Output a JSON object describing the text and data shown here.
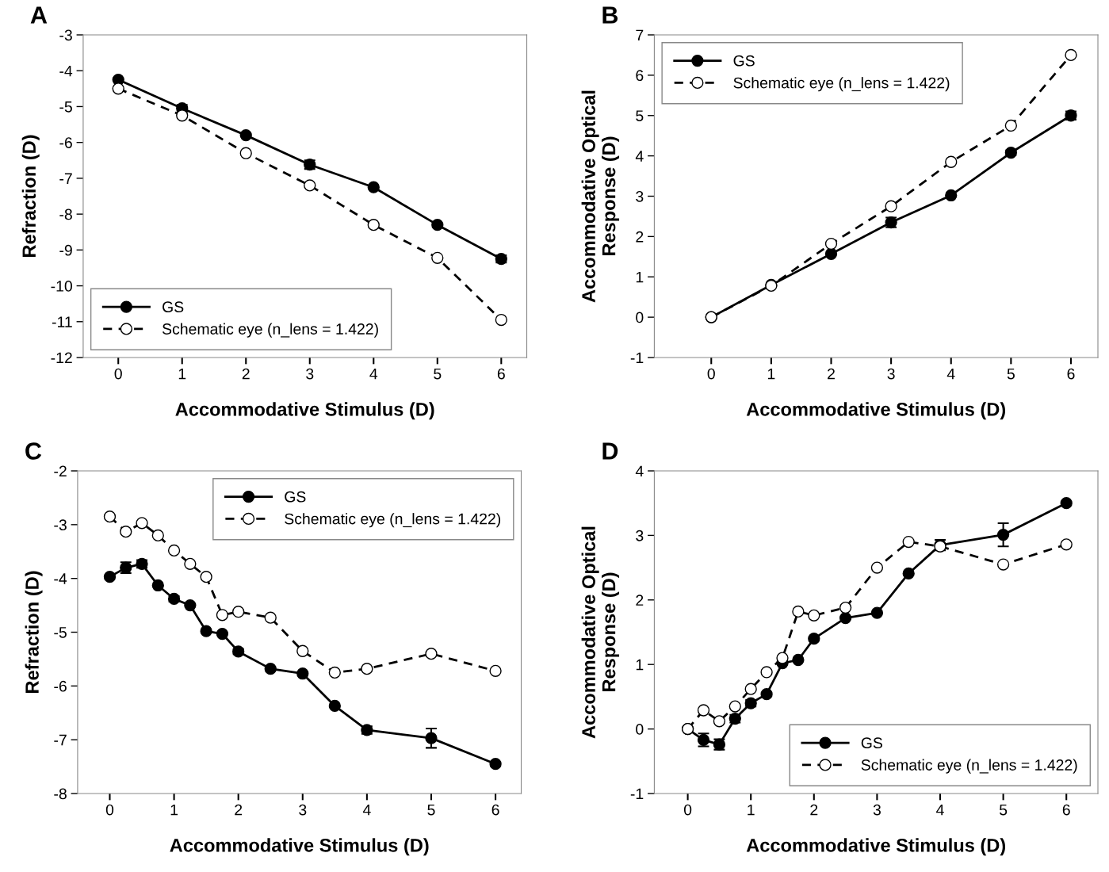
{
  "chart_data": [
    {
      "type": "line",
      "annotations": [
        "A"
      ],
      "xlabel": "Accommodative Stimulus (D)",
      "ylabel": "Refraction (D)",
      "x": [
        0,
        1,
        2,
        3,
        4,
        5,
        6
      ],
      "xlim": [
        -0.55,
        6.4
      ],
      "ylim": [
        -12,
        -3
      ],
      "xticks": [
        0,
        1,
        2,
        3,
        4,
        5,
        6
      ],
      "yticks": [
        -12,
        -11,
        -10,
        -9,
        -8,
        -7,
        -6,
        -5,
        -4,
        -3
      ],
      "legend": "bottom left",
      "grid": false,
      "marker": "circle",
      "series": [
        {
          "name": "GS",
          "color": "#000000",
          "line_style": "solid",
          "values": [
            -4.25,
            -5.05,
            -5.8,
            -6.62,
            -7.25,
            -8.3,
            -9.25
          ],
          "errors": [
            null,
            0.1,
            null,
            0.12,
            null,
            null,
            0.1
          ]
        },
        {
          "name": "Schematic eye (n_lens = 1.422)",
          "color": "#ffffff",
          "line_style": "dashed",
          "values": [
            -4.5,
            -5.25,
            -6.3,
            -7.2,
            -8.3,
            -9.22,
            -10.95
          ]
        }
      ]
    },
    {
      "type": "line",
      "annotations": [
        "B"
      ],
      "xlabel": "Accommodative Stimulus (D)",
      "ylabel": "Accommodative Optical\nResponse (D)",
      "x": [
        0,
        1,
        2,
        3,
        4,
        5,
        6
      ],
      "xlim": [
        -0.95,
        6.45
      ],
      "ylim": [
        -1,
        7
      ],
      "xticks": [
        0,
        1,
        2,
        3,
        4,
        5,
        6
      ],
      "yticks": [
        -1,
        0,
        1,
        2,
        3,
        4,
        5,
        6,
        7
      ],
      "legend": "top left",
      "grid": false,
      "marker": "circle",
      "series": [
        {
          "name": "GS",
          "color": "#000000",
          "line_style": "solid",
          "values": [
            0,
            0.8,
            1.57,
            2.35,
            3.02,
            4.08,
            5.0
          ],
          "errors": [
            null,
            null,
            null,
            0.12,
            null,
            0.06,
            0.1
          ]
        },
        {
          "name": "Schematic eye (n_lens = 1.422)",
          "color": "#ffffff",
          "line_style": "dashed",
          "values": [
            0,
            0.78,
            1.82,
            2.75,
            3.85,
            4.75,
            6.5
          ]
        }
      ]
    },
    {
      "type": "line",
      "annotations": [
        "C"
      ],
      "xlabel": "Accommodative Stimulus (D)",
      "ylabel": "Refraction (D)",
      "x": [
        0,
        0.25,
        0.5,
        0.75,
        1,
        1.25,
        1.5,
        1.75,
        2,
        2.5,
        3,
        3.5,
        4,
        5,
        6
      ],
      "xlim": [
        -0.5,
        6.4
      ],
      "ylim": [
        -8,
        -2
      ],
      "xticks": [
        0,
        1,
        2,
        3,
        4,
        5,
        6
      ],
      "yticks": [
        -8,
        -7,
        -6,
        -5,
        -4,
        -3,
        -2
      ],
      "legend": "top right",
      "grid": false,
      "marker": "circle",
      "series": [
        {
          "name": "GS",
          "color": "#000000",
          "line_style": "solid",
          "values": [
            -3.97,
            -3.8,
            -3.73,
            -4.13,
            -4.38,
            -4.5,
            -4.98,
            -5.03,
            -5.36,
            -5.68,
            -5.77,
            -6.37,
            -6.82,
            -6.97,
            -7.45
          ],
          "errors": [
            null,
            0.1,
            0.07,
            null,
            0.05,
            null,
            null,
            null,
            0.05,
            null,
            null,
            null,
            0.07,
            0.18,
            null
          ]
        },
        {
          "name": "Schematic eye (n_lens = 1.422)",
          "color": "#ffffff",
          "line_style": "dashed",
          "values": [
            -2.85,
            -3.13,
            -2.97,
            -3.2,
            -3.48,
            -3.73,
            -3.97,
            -4.68,
            -4.62,
            -4.73,
            -5.35,
            -5.75,
            -5.68,
            -5.4,
            -5.72
          ]
        }
      ]
    },
    {
      "type": "line",
      "annotations": [
        "D"
      ],
      "xlabel": "Accommodative Stimulus (D)",
      "ylabel": "Accommodative Optical\nResponse (D)",
      "x": [
        0,
        0.25,
        0.5,
        0.75,
        1,
        1.25,
        1.5,
        1.75,
        2,
        2.5,
        3,
        3.5,
        4,
        5,
        6
      ],
      "xlim": [
        -0.53,
        6.5
      ],
      "ylim": [
        -1,
        4
      ],
      "xticks": [
        0,
        1,
        2,
        3,
        4,
        5,
        6
      ],
      "yticks": [
        -1,
        0,
        1,
        2,
        3,
        4
      ],
      "legend": "bottom right",
      "grid": false,
      "marker": "circle",
      "series": [
        {
          "name": "GS",
          "color": "#000000",
          "line_style": "solid",
          "values": [
            0,
            -0.17,
            -0.24,
            0.16,
            0.4,
            0.54,
            1.02,
            1.07,
            1.4,
            1.72,
            1.8,
            2.41,
            2.85,
            3.01,
            3.5
          ],
          "errors": [
            null,
            0.1,
            0.08,
            0.06,
            0.05,
            null,
            null,
            null,
            null,
            null,
            null,
            null,
            0.08,
            0.18,
            null
          ]
        },
        {
          "name": "Schematic eye (n_lens = 1.422)",
          "color": "#ffffff",
          "line_style": "dashed",
          "values": [
            0,
            0.29,
            0.12,
            0.35,
            0.62,
            0.88,
            1.1,
            1.82,
            1.76,
            1.88,
            2.5,
            2.9,
            2.83,
            2.55,
            2.86
          ]
        }
      ]
    }
  ]
}
